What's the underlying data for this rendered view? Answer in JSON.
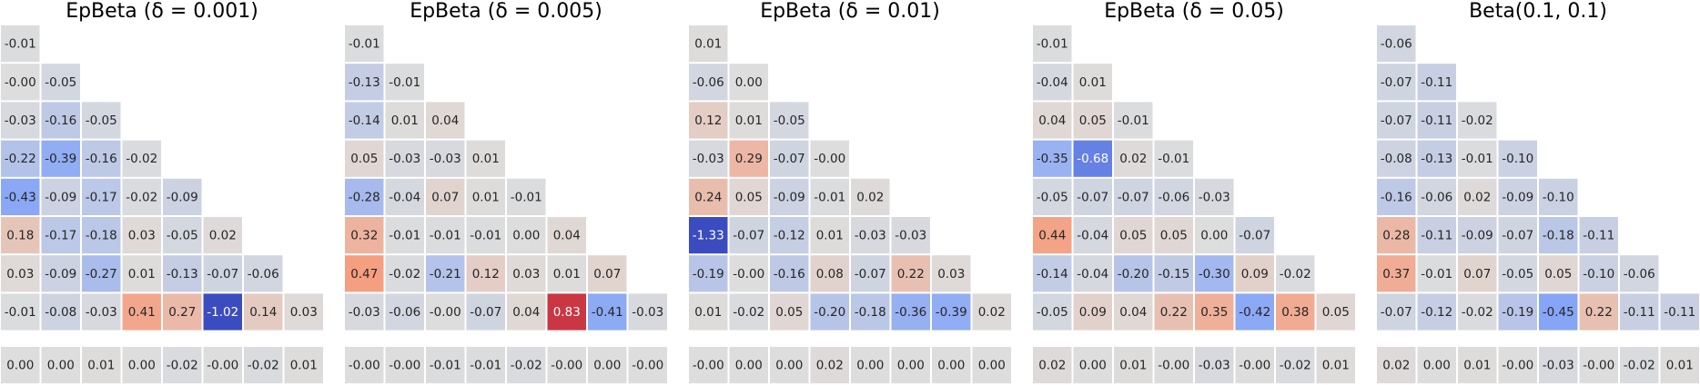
{
  "figure": {
    "description_free": true
  },
  "chart_data": [
    {
      "type": "heatmap",
      "title": "EpBeta (δ = 0.001)",
      "colormap": "coolwarm",
      "vrange": [
        -1,
        1
      ],
      "rows": [
        [
          "-0.01"
        ],
        [
          "-0.00",
          "-0.05"
        ],
        [
          "-0.03",
          "-0.16",
          "-0.05"
        ],
        [
          "-0.22",
          "-0.39",
          "-0.16",
          "-0.02"
        ],
        [
          "-0.43",
          "-0.09",
          "-0.17",
          "-0.02",
          "-0.09"
        ],
        [
          "0.18",
          "-0.17",
          "-0.18",
          "0.03",
          "-0.05",
          "0.02"
        ],
        [
          "0.03",
          "-0.09",
          "-0.27",
          "0.01",
          "-0.13",
          "-0.07",
          "-0.06"
        ],
        [
          "-0.01",
          "-0.08",
          "-0.03",
          "0.41",
          "0.27",
          "-1.02",
          "0.14",
          "0.03"
        ]
      ],
      "bottom_row": [
        "0.00",
        "0.00",
        "0.01",
        "0.00",
        "-0.02",
        "-0.00",
        "-0.02",
        "0.01"
      ]
    },
    {
      "type": "heatmap",
      "title": "EpBeta (δ = 0.005)",
      "colormap": "coolwarm",
      "vrange": [
        -1,
        1
      ],
      "rows": [
        [
          "-0.01"
        ],
        [
          "-0.13",
          "-0.01"
        ],
        [
          "-0.14",
          "0.01",
          "0.04"
        ],
        [
          "0.05",
          "-0.03",
          "-0.03",
          "0.01"
        ],
        [
          "-0.28",
          "-0.04",
          "0.07",
          "0.01",
          "-0.01"
        ],
        [
          "0.32",
          "-0.01",
          "-0.01",
          "-0.01",
          "0.00",
          "0.04"
        ],
        [
          "0.47",
          "-0.02",
          "-0.21",
          "0.12",
          "0.03",
          "0.01",
          "0.07"
        ],
        [
          "-0.03",
          "-0.06",
          "-0.00",
          "-0.07",
          "0.04",
          "0.83",
          "-0.41",
          "-0.03"
        ]
      ],
      "bottom_row": [
        "-0.00",
        "-0.00",
        "-0.01",
        "-0.01",
        "-0.02",
        "-0.00",
        "0.00",
        "-0.00"
      ]
    },
    {
      "type": "heatmap",
      "title": "EpBeta (δ = 0.01)",
      "colormap": "coolwarm",
      "vrange": [
        -1,
        1
      ],
      "rows": [
        [
          "0.01"
        ],
        [
          "-0.06",
          "0.00"
        ],
        [
          "0.12",
          "0.01",
          "-0.05"
        ],
        [
          "-0.03",
          "0.29",
          "-0.07",
          "-0.00"
        ],
        [
          "0.24",
          "0.05",
          "-0.09",
          "-0.01",
          "0.02"
        ],
        [
          "-1.33",
          "-0.07",
          "-0.12",
          "0.01",
          "-0.03",
          "-0.03"
        ],
        [
          "-0.19",
          "-0.00",
          "-0.16",
          "0.08",
          "-0.07",
          "0.22",
          "0.03"
        ],
        [
          "0.01",
          "-0.02",
          "0.05",
          "-0.20",
          "-0.18",
          "-0.36",
          "-0.39",
          "0.02"
        ]
      ],
      "bottom_row": [
        "-0.00",
        "0.00",
        "0.00",
        "0.02",
        "0.00",
        "0.00",
        "0.00",
        "0.00"
      ]
    },
    {
      "type": "heatmap",
      "title": "EpBeta (δ = 0.05)",
      "colormap": "coolwarm",
      "vrange": [
        -1,
        1
      ],
      "rows": [
        [
          "-0.01"
        ],
        [
          "-0.04",
          "0.01"
        ],
        [
          "0.04",
          "0.05",
          "-0.01"
        ],
        [
          "-0.35",
          "-0.68",
          "0.02",
          "-0.01"
        ],
        [
          "-0.05",
          "-0.07",
          "-0.07",
          "-0.06",
          "-0.03"
        ],
        [
          "0.44",
          "-0.04",
          "0.05",
          "0.05",
          "0.00",
          "-0.07"
        ],
        [
          "-0.14",
          "-0.04",
          "-0.20",
          "-0.15",
          "-0.30",
          "0.09",
          "-0.02"
        ],
        [
          "-0.05",
          "0.09",
          "0.04",
          "0.22",
          "0.35",
          "-0.42",
          "0.38",
          "0.05"
        ]
      ],
      "bottom_row": [
        "0.02",
        "0.00",
        "0.01",
        "-0.00",
        "-0.03",
        "-0.00",
        "-0.02",
        "0.01"
      ]
    },
    {
      "type": "heatmap",
      "title": "Beta(0.1, 0.1)",
      "colormap": "coolwarm",
      "vrange": [
        -1,
        1
      ],
      "rows": [
        [
          "-0.06"
        ],
        [
          "-0.07",
          "-0.11"
        ],
        [
          "-0.07",
          "-0.11",
          "-0.02"
        ],
        [
          "-0.08",
          "-0.13",
          "-0.01",
          "-0.10"
        ],
        [
          "-0.16",
          "-0.06",
          "0.02",
          "-0.09",
          "-0.10"
        ],
        [
          "0.28",
          "-0.11",
          "-0.09",
          "-0.07",
          "-0.18",
          "-0.11"
        ],
        [
          "0.37",
          "-0.01",
          "0.07",
          "-0.05",
          "0.05",
          "-0.10",
          "-0.06"
        ],
        [
          "-0.07",
          "-0.12",
          "-0.02",
          "-0.19",
          "-0.45",
          "0.22",
          "-0.11",
          "-0.11"
        ]
      ],
      "bottom_row": [
        "0.02",
        "0.00",
        "0.01",
        "-0.00",
        "-0.03",
        "-0.00",
        "-0.02",
        "0.01"
      ]
    }
  ]
}
